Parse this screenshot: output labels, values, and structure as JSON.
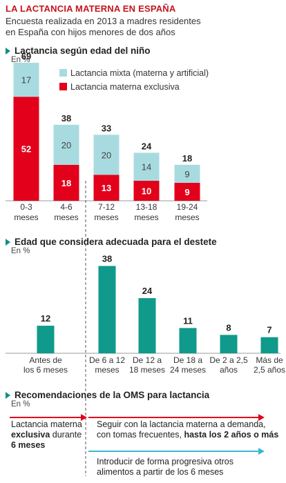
{
  "header": {
    "title": "LA LACTANCIA MATERNA EN ESPAÑA",
    "subtitle": "Encuesta realizada en 2013 a madres residentes en España con hijos menores de dos años"
  },
  "colors": {
    "red": "#e2001a",
    "light_blue": "#a8dbe0",
    "teal": "#0f9a8b",
    "title_red": "#c4141d",
    "oms_blue": "#3bb6d3"
  },
  "chart_data": [
    {
      "type": "bar",
      "title": "Lactancia según edad del niño",
      "unit": "En %",
      "stacked": true,
      "categories": [
        "0-3 meses",
        "4-6 meses",
        "7-12 meses",
        "13-18 meses",
        "19-24 meses"
      ],
      "category_lines": [
        [
          "0-3",
          "meses"
        ],
        [
          "4-6",
          "meses"
        ],
        [
          "7-12",
          "meses"
        ],
        [
          "13-18",
          "meses"
        ],
        [
          "19-24",
          "meses"
        ]
      ],
      "totals": [
        69,
        38,
        33,
        24,
        18
      ],
      "series": [
        {
          "name": "Lactancia materna exclusiva",
          "values": [
            52,
            18,
            13,
            10,
            9
          ],
          "color": "#e2001a"
        },
        {
          "name": "Lactancia mixta (materna y artificial)",
          "values": [
            17,
            20,
            20,
            14,
            9
          ],
          "color": "#a8dbe0"
        }
      ],
      "legend_position": "top-right"
    },
    {
      "type": "bar",
      "title": "Edad que considera adecuada para el destete",
      "unit": "En %",
      "categories": [
        "Antes de los 6 meses",
        "De 6 a 12 meses",
        "De 12 a 18 meses",
        "De 18 a 24 meses",
        "De 2 a 2,5 años",
        "Más de 2,5 años"
      ],
      "category_lines": [
        [
          "Antes de",
          "los 6 meses"
        ],
        [
          "De 6 a 12",
          "meses"
        ],
        [
          "De 12 a",
          "18 meses"
        ],
        [
          "De 18 a",
          "24 meses"
        ],
        [
          "De 2 a 2,5",
          "años"
        ],
        [
          "Más de",
          "2,5 años"
        ]
      ],
      "values": [
        12,
        38,
        24,
        11,
        8,
        7
      ],
      "color": "#0f9a8b"
    }
  ],
  "oms": {
    "title": "Recomendaciones de la OMS para lactancia",
    "unit": "En %",
    "left_line1": "Lactancia materna",
    "left_bold": "exclusiva",
    "left_rest": " durante",
    "left_line3": "6 meses",
    "right_line1": "Seguir con la lactancia materna a demanda,",
    "right_line2a": "con tomas frecuentes, ",
    "right_line2b": "hasta los 2 años o más",
    "blue_line1": "Introducir de forma progresiva otros",
    "blue_line2": "alimentos a partir de los 6 meses"
  }
}
